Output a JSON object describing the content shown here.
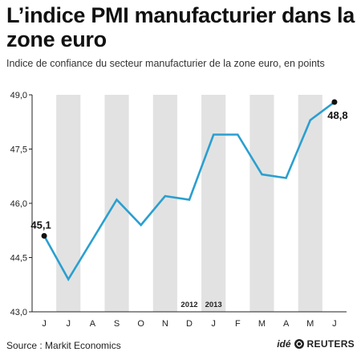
{
  "header": {
    "title": "L’indice PMI manufacturier dans la zone euro",
    "subtitle": "Indice de confiance du secteur manufacturier de la zone euro, en points"
  },
  "footer": {
    "source": "Source : Markit Economics",
    "credit_ide": "idé",
    "credit_reuters": "REUTERS"
  },
  "colors": {
    "line": "#2a9fd0",
    "band": "#e2e2e2",
    "marker": "#111111"
  },
  "chart_data": {
    "type": "line",
    "categories": [
      "J",
      "J",
      "A",
      "S",
      "O",
      "N",
      "D",
      "J",
      "F",
      "M",
      "A",
      "M",
      "J"
    ],
    "series": [
      {
        "values": [
          45.1,
          43.9,
          45.0,
          46.1,
          45.4,
          46.2,
          46.1,
          47.9,
          47.9,
          46.8,
          46.7,
          48.3,
          48.8
        ]
      }
    ],
    "ylim": [
      43.0,
      49.0
    ],
    "yticks": [
      "43,0",
      "44,5",
      "46,0",
      "47,5",
      "49,0"
    ],
    "ytick_values": [
      43.0,
      44.5,
      46.0,
      47.5,
      49.0
    ],
    "year_labels": [
      {
        "text": "2012",
        "index": 6
      },
      {
        "text": "2013",
        "index": 7
      }
    ],
    "point_labels": [
      {
        "text": "45,1",
        "index": 0
      },
      {
        "text": "48,8",
        "index": 12
      }
    ],
    "grid": "alternating vertical bands",
    "legend": "none"
  }
}
